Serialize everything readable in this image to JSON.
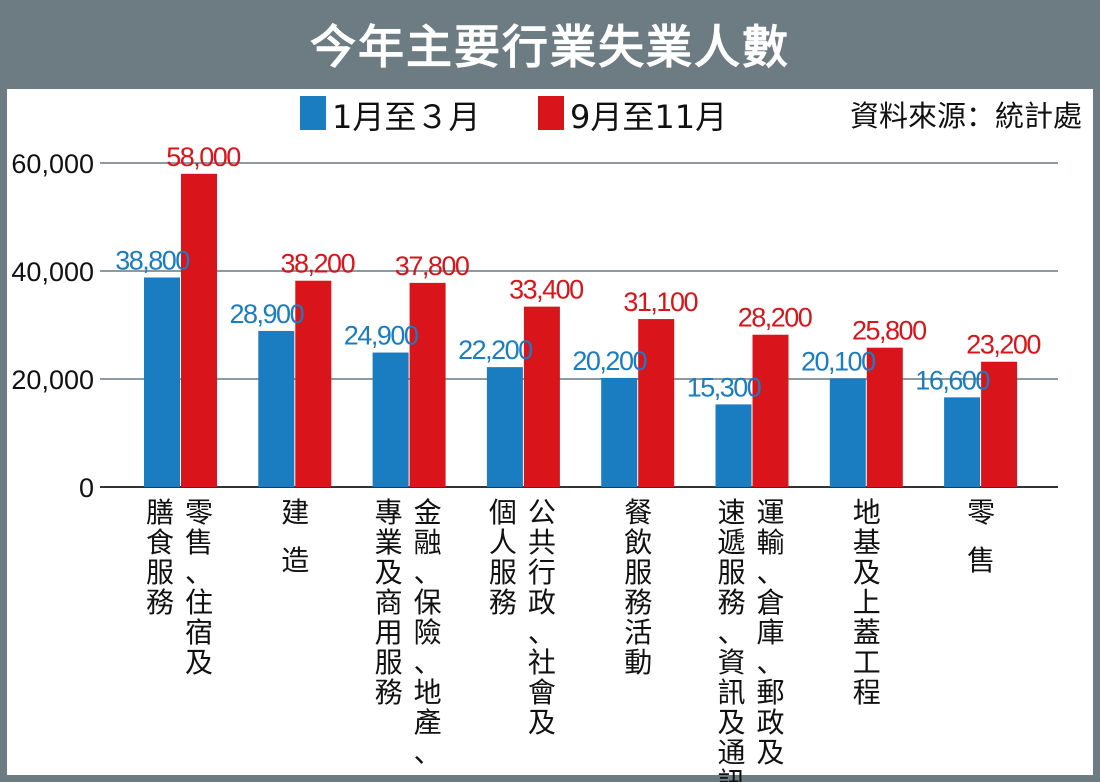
{
  "title": "今年主要行業失業人數",
  "source": "資料來源：統計處",
  "colors": {
    "series1": "#1a7cc1",
    "series2": "#d9141b",
    "frame": "#6d7b82",
    "grid": "#8c9aa2"
  },
  "chart_data": {
    "type": "bar",
    "title": "今年主要行業失業人數",
    "categories": [
      [
        "膳食服務",
        "零售、住宿及"
      ],
      [
        "建 造"
      ],
      [
        "專業及商用服務",
        "金融、保險、地產、"
      ],
      [
        "個人服務",
        "公共行政、社會及"
      ],
      [
        "餐飲服務活動"
      ],
      [
        "速遞服務、資訊及通訊",
        "運輸、倉庫、郵政及"
      ],
      [
        "地基及上蓋工程"
      ],
      [
        "零 售"
      ]
    ],
    "series": [
      {
        "name": "1月至３月",
        "values": [
          38800,
          28900,
          24900,
          22200,
          20200,
          15300,
          20100,
          16600
        ],
        "labels": [
          "38,800",
          "28,900",
          "24,900",
          "22,200",
          "20,200",
          "15,300",
          "20,100",
          "16,600"
        ]
      },
      {
        "name": "9月至11月",
        "values": [
          58000,
          38200,
          37800,
          33400,
          31100,
          28200,
          25800,
          23200
        ],
        "labels": [
          "58,000",
          "38,200",
          "37,800",
          "33,400",
          "31,100",
          "28,200",
          "25,800",
          "23,200"
        ]
      }
    ],
    "yticks": [
      "0",
      "20,000",
      "40,000",
      "60,000"
    ],
    "ytick_values": [
      0,
      20000,
      40000,
      60000
    ],
    "ylim": [
      0,
      60000
    ],
    "grid": true,
    "legend": "top"
  }
}
